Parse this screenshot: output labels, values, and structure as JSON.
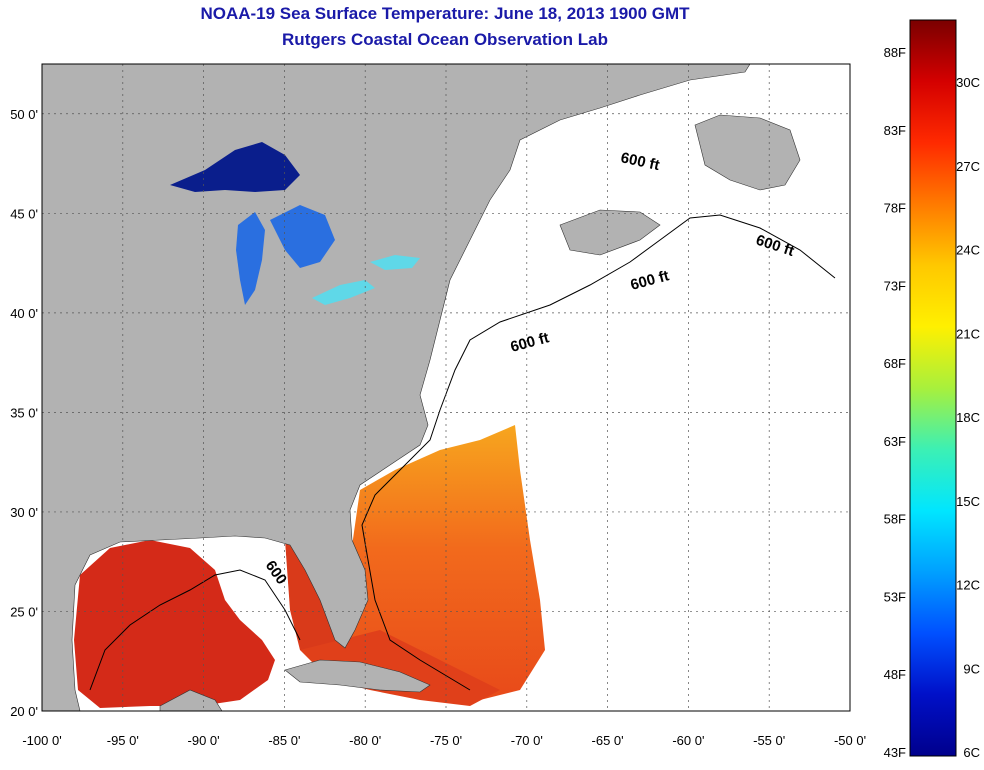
{
  "title_line1": "NOAA-19 Sea Surface Temperature:  June 18, 2013 1900 GMT",
  "title_line2": "Rutgers Coastal Ocean Observation Lab",
  "map": {
    "lon_ticks": [
      {
        "value": -100,
        "label": "-100 0'"
      },
      {
        "value": -95,
        "label": "-95 0'"
      },
      {
        "value": -90,
        "label": "-90 0'"
      },
      {
        "value": -85,
        "label": "-85 0'"
      },
      {
        "value": -80,
        "label": "-80 0'"
      },
      {
        "value": -75,
        "label": "-75 0'"
      },
      {
        "value": -70,
        "label": "-70 0'"
      },
      {
        "value": -65,
        "label": "-65 0'"
      },
      {
        "value": -60,
        "label": "-60 0'"
      },
      {
        "value": -55,
        "label": "-55 0'"
      },
      {
        "value": -50,
        "label": "-50 0'"
      }
    ],
    "lat_ticks": [
      {
        "value": 20,
        "label": "20 0'"
      },
      {
        "value": 25,
        "label": "25 0'"
      },
      {
        "value": 30,
        "label": "30 0'"
      },
      {
        "value": 35,
        "label": "35 0'"
      },
      {
        "value": 40,
        "label": "40 0'"
      },
      {
        "value": 45,
        "label": "45 0'"
      },
      {
        "value": 50,
        "label": "50 0'"
      }
    ],
    "contour_labels": [
      "600 ft",
      "600 ft",
      "600 ft",
      "600 ft",
      "600"
    ],
    "colors": {
      "land": "#b2b2b2",
      "ocean": "#ffffff",
      "lake_superior": "#0a1e8c",
      "lakes_mid": "#2a6fe0",
      "lake_erie": "#5fd8e8",
      "gulf": "#d42a18",
      "atlantic": "#ee5a1c",
      "atlantic_north": "#f7a01c"
    }
  },
  "legend": {
    "f_labels": [
      "88F",
      "83F",
      "78F",
      "73F",
      "68F",
      "63F",
      "58F",
      "53F",
      "48F",
      "43F"
    ],
    "c_labels": [
      "30C",
      "27C",
      "24C",
      "21C",
      "18C",
      "15C",
      "12C",
      "9C",
      "6C"
    ],
    "colormap": [
      "#7a0000",
      "#d40000",
      "#ff2a00",
      "#ff7a00",
      "#ffc800",
      "#fff000",
      "#a8f03c",
      "#3cf0b4",
      "#00e6ff",
      "#00a0ff",
      "#0050ff",
      "#0010c8",
      "#00008c"
    ]
  }
}
